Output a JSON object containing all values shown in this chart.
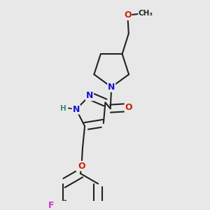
{
  "bg_color": "#e8e8e8",
  "bond_color": "#222222",
  "bond_width": 1.5,
  "dbo": 0.015,
  "atom_colors": {
    "N": "#1515cc",
    "O": "#cc2200",
    "F": "#cc33cc",
    "H": "#338888",
    "C": "#222222"
  },
  "fs": 9.0,
  "fss": 7.5
}
